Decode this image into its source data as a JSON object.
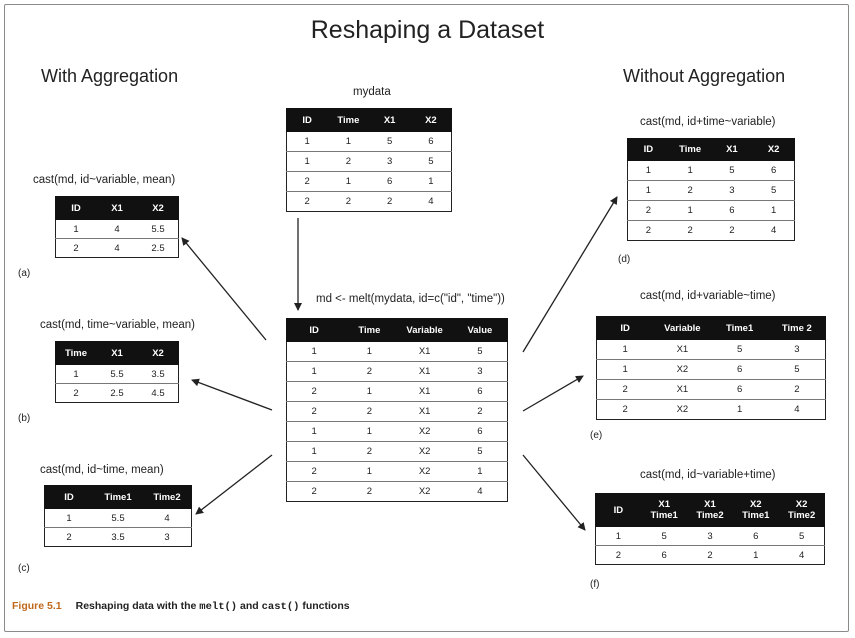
{
  "title": "Reshaping a Dataset",
  "headings": {
    "left": "With Aggregation",
    "right": "Without Aggregation"
  },
  "tables": {
    "mydata": {
      "label": "mydata",
      "headers": [
        [
          "ID"
        ],
        [
          "Time"
        ],
        [
          "X1"
        ],
        [
          "X2"
        ]
      ],
      "rows": [
        [
          "1",
          "1",
          "5",
          "6"
        ],
        [
          "1",
          "2",
          "3",
          "5"
        ],
        [
          "2",
          "1",
          "6",
          "1"
        ],
        [
          "2",
          "2",
          "2",
          "4"
        ]
      ]
    },
    "melted": {
      "label": "md <- melt(mydata, id=c(\"id\", \"time\"))",
      "headers": [
        [
          "ID"
        ],
        [
          "Time"
        ],
        [
          "Variable"
        ],
        [
          "Value"
        ]
      ],
      "rows": [
        [
          "1",
          "1",
          "X1",
          "5"
        ],
        [
          "1",
          "2",
          "X1",
          "3"
        ],
        [
          "2",
          "1",
          "X1",
          "6"
        ],
        [
          "2",
          "2",
          "X1",
          "2"
        ],
        [
          "1",
          "1",
          "X2",
          "6"
        ],
        [
          "1",
          "2",
          "X2",
          "5"
        ],
        [
          "2",
          "1",
          "X2",
          "1"
        ],
        [
          "2",
          "2",
          "X2",
          "4"
        ]
      ]
    },
    "a": {
      "label": "cast(md, id~variable, mean)",
      "tag": "(a)",
      "headers": [
        [
          "ID"
        ],
        [
          "X1"
        ],
        [
          "X2"
        ]
      ],
      "rows": [
        [
          "1",
          "4",
          "5.5"
        ],
        [
          "2",
          "4",
          "2.5"
        ]
      ]
    },
    "b": {
      "label": "cast(md, time~variable, mean)",
      "tag": "(b)",
      "headers": [
        [
          "Time"
        ],
        [
          "X1"
        ],
        [
          "X2"
        ]
      ],
      "rows": [
        [
          "1",
          "5.5",
          "3.5"
        ],
        [
          "2",
          "2.5",
          "4.5"
        ]
      ]
    },
    "c": {
      "label": "cast(md, id~time, mean)",
      "tag": "(c)",
      "headers": [
        [
          "ID"
        ],
        [
          "Time1"
        ],
        [
          "Time2"
        ]
      ],
      "rows": [
        [
          "1",
          "5.5",
          "4"
        ],
        [
          "2",
          "3.5",
          "3"
        ]
      ]
    },
    "d": {
      "label": "cast(md, id+time~variable)",
      "tag": "(d)",
      "headers": [
        [
          "ID"
        ],
        [
          "Time"
        ],
        [
          "X1"
        ],
        [
          "X2"
        ]
      ],
      "rows": [
        [
          "1",
          "1",
          "5",
          "6"
        ],
        [
          "1",
          "2",
          "3",
          "5"
        ],
        [
          "2",
          "1",
          "6",
          "1"
        ],
        [
          "2",
          "2",
          "2",
          "4"
        ]
      ]
    },
    "e": {
      "label": "cast(md, id+variable~time)",
      "tag": "(e)",
      "headers": [
        [
          "ID"
        ],
        [
          "Variable"
        ],
        [
          "Time1"
        ],
        [
          "Time 2"
        ]
      ],
      "rows": [
        [
          "1",
          "X1",
          "5",
          "3"
        ],
        [
          "1",
          "X2",
          "6",
          "5"
        ],
        [
          "2",
          "X1",
          "6",
          "2"
        ],
        [
          "2",
          "X2",
          "1",
          "4"
        ]
      ]
    },
    "f": {
      "label": "cast(md, id~variable+time)",
      "tag": "(f)",
      "headers": [
        [
          "ID"
        ],
        [
          "X1",
          "Time1"
        ],
        [
          "X1",
          "Time2"
        ],
        [
          "X2",
          "Time1"
        ],
        [
          "X2",
          "Time2"
        ]
      ],
      "rows": [
        [
          "1",
          "5",
          "3",
          "6",
          "5"
        ],
        [
          "2",
          "6",
          "2",
          "1",
          "4"
        ]
      ]
    }
  },
  "caption": {
    "figure": "Figure 5.1",
    "text_1": "Reshaping data with the ",
    "code_1": "melt()",
    "text_2": " and ",
    "code_2": "cast()",
    "text_3": " functions"
  },
  "colors": {
    "header_bg": "#111111",
    "figure_label": "#c0691b",
    "border": "#8a8a8a"
  }
}
